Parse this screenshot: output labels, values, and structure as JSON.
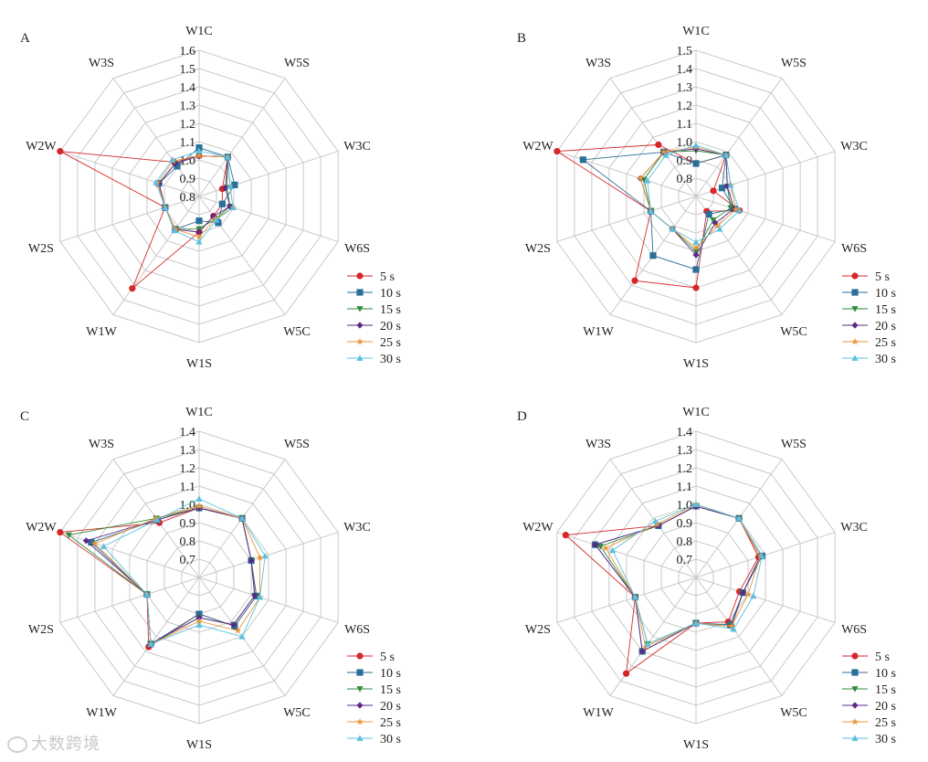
{
  "watermark": "大数跨境",
  "colors": {
    "5 s": "#d62728",
    "10 s": "#2a6f97",
    "15 s": "#2e8b3a",
    "20 s": "#5b2a86",
    "25 s": "#e8973a",
    "30 s": "#5bc0de"
  },
  "chart_data": [
    {
      "panel": "A",
      "type": "radar",
      "axes": [
        "W1C",
        "W5S",
        "W3C",
        "W6S",
        "W5C",
        "W1S",
        "W1W",
        "W2S",
        "W2W",
        "W3S"
      ],
      "ticks": [
        "0.8",
        "0.9",
        "1.0",
        "1.1",
        "1.2",
        "1.3",
        "1.4",
        "1.5",
        "1.6"
      ],
      "range": [
        0.7,
        1.6
      ],
      "series": [
        {
          "name": "5 s",
          "values": [
            0.95,
            1.0,
            0.85,
            0.85,
            0.85,
            0.92,
            1.4,
            0.92,
            1.6,
            0.96
          ]
        },
        {
          "name": "10 s",
          "values": [
            1.0,
            1.0,
            0.93,
            0.85,
            0.9,
            0.85,
            0.95,
            0.92,
            0.96,
            0.93
          ]
        },
        {
          "name": "15 s",
          "values": [
            0.95,
            1.0,
            0.88,
            0.9,
            0.87,
            0.9,
            0.95,
            0.92,
            0.96,
            0.95
          ]
        },
        {
          "name": "20 s",
          "values": [
            0.95,
            1.0,
            0.87,
            0.9,
            0.85,
            0.92,
            0.95,
            0.92,
            0.96,
            0.95
          ]
        },
        {
          "name": "25 s",
          "values": [
            0.95,
            1.0,
            0.9,
            0.92,
            0.87,
            0.95,
            0.95,
            0.92,
            0.97,
            0.97
          ]
        },
        {
          "name": "30 s",
          "values": [
            0.98,
            1.0,
            0.9,
            0.92,
            0.88,
            0.98,
            0.96,
            0.92,
            0.98,
            0.98
          ]
        }
      ]
    },
    {
      "panel": "B",
      "type": "radar",
      "axes": [
        "W1C",
        "W5S",
        "W3C",
        "W6S",
        "W5C",
        "W1S",
        "W1W",
        "W2S",
        "W2W",
        "W3S"
      ],
      "ticks": [
        "0.8",
        "0.9",
        "1.0",
        "1.1",
        "1.2",
        "1.3",
        "1.4",
        "1.5"
      ],
      "range": [
        0.7,
        1.5
      ],
      "series": [
        {
          "name": "5 s",
          "values": [
            0.88,
            0.98,
            0.8,
            0.95,
            0.8,
            1.2,
            1.27,
            0.96,
            1.5,
            1.05
          ]
        },
        {
          "name": "10 s",
          "values": [
            0.88,
            0.98,
            0.85,
            0.92,
            0.82,
            1.1,
            1.1,
            0.96,
            1.35,
            1.0
          ]
        },
        {
          "name": "15 s",
          "values": [
            0.95,
            0.98,
            0.88,
            0.9,
            0.86,
            1.0,
            0.92,
            0.96,
            1.0,
            1.0
          ]
        },
        {
          "name": "20 s",
          "values": [
            0.96,
            0.98,
            0.88,
            0.92,
            0.88,
            1.02,
            0.92,
            0.96,
            1.02,
            1.0
          ]
        },
        {
          "name": "25 s",
          "values": [
            0.97,
            0.98,
            0.9,
            0.93,
            0.9,
            0.98,
            0.92,
            0.96,
            1.02,
            1.0
          ]
        },
        {
          "name": "30 s",
          "values": [
            0.98,
            0.98,
            0.9,
            0.95,
            0.92,
            0.95,
            0.92,
            0.96,
            0.98,
            0.98
          ]
        }
      ]
    },
    {
      "panel": "C",
      "type": "radar",
      "axes": [
        "W1C",
        "W5S",
        "W3C",
        "W6S",
        "W5C",
        "W1S",
        "W1W",
        "W2S",
        "W2W",
        "W3S"
      ],
      "ticks": [
        "0.7",
        "0.8",
        "0.9",
        "1.0",
        "1.1",
        "1.2",
        "1.3",
        "1.4"
      ],
      "range": [
        0.6,
        1.4
      ],
      "series": [
        {
          "name": "5 s",
          "values": [
            0.98,
            1.0,
            0.9,
            0.93,
            0.93,
            0.8,
            1.07,
            0.9,
            1.4,
            0.97
          ]
        },
        {
          "name": "10 s",
          "values": [
            0.98,
            1.0,
            0.9,
            0.93,
            0.93,
            0.8,
            1.05,
            0.9,
            1.22,
            0.99
          ]
        },
        {
          "name": "15 s",
          "values": [
            0.98,
            1.0,
            0.9,
            0.92,
            0.92,
            0.82,
            1.05,
            0.9,
            1.35,
            1.0
          ]
        },
        {
          "name": "20 s",
          "values": [
            0.98,
            1.0,
            0.9,
            0.92,
            0.92,
            0.82,
            1.05,
            0.9,
            1.25,
            0.99
          ]
        },
        {
          "name": "25 s",
          "values": [
            0.99,
            1.0,
            0.95,
            0.95,
            0.96,
            0.84,
            1.05,
            0.9,
            1.2,
            1.0
          ]
        },
        {
          "name": "30 s",
          "values": [
            1.03,
            1.0,
            0.98,
            0.95,
            1.0,
            0.86,
            1.05,
            0.9,
            1.15,
            0.99
          ]
        }
      ]
    },
    {
      "panel": "D",
      "type": "radar",
      "axes": [
        "W1C",
        "W5S",
        "W3C",
        "W6S",
        "W5C",
        "W1S",
        "W1W",
        "W2S",
        "W2W",
        "W3S"
      ],
      "ticks": [
        "0.7",
        "0.8",
        "0.9",
        "1.0",
        "1.1",
        "1.2",
        "1.3",
        "1.4"
      ],
      "range": [
        0.6,
        1.4
      ],
      "series": [
        {
          "name": "5 s",
          "values": [
            0.99,
            1.0,
            0.96,
            0.85,
            0.9,
            0.85,
            1.25,
            0.95,
            1.35,
            0.95
          ]
        },
        {
          "name": "10 s",
          "values": [
            0.99,
            1.0,
            0.98,
            0.87,
            0.92,
            0.85,
            1.1,
            0.95,
            1.18,
            0.95
          ]
        },
        {
          "name": "15 s",
          "values": [
            0.99,
            1.0,
            0.97,
            0.87,
            0.93,
            0.85,
            1.05,
            0.95,
            1.15,
            0.95
          ]
        },
        {
          "name": "20 s",
          "values": [
            0.99,
            1.0,
            0.97,
            0.87,
            0.93,
            0.85,
            1.1,
            0.95,
            1.18,
            0.95
          ]
        },
        {
          "name": "25 s",
          "values": [
            1.0,
            1.0,
            0.97,
            0.9,
            0.93,
            0.85,
            1.07,
            0.95,
            1.12,
            0.96
          ]
        },
        {
          "name": "30 s",
          "values": [
            1.0,
            1.0,
            0.98,
            0.93,
            0.95,
            0.85,
            1.05,
            0.95,
            1.08,
            0.98
          ]
        }
      ]
    }
  ]
}
